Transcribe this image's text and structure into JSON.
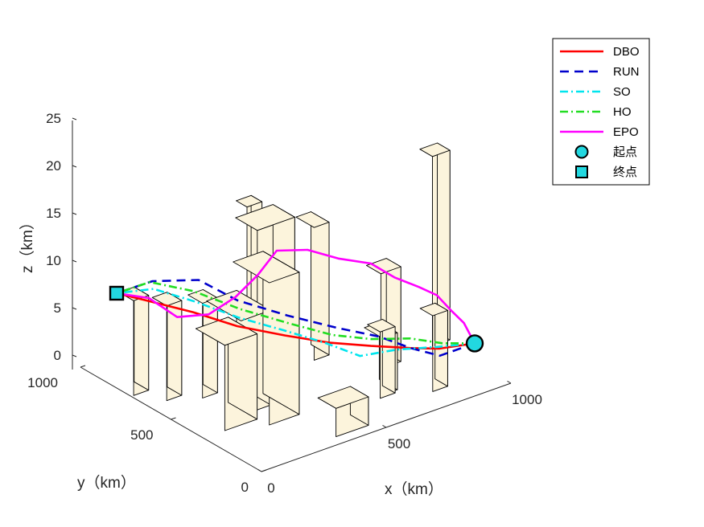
{
  "chart_data": {
    "type": "line",
    "view": "3d",
    "xlabel": "x（km）",
    "ylabel": "y（km）",
    "zlabel": "z（km）",
    "xlim": [
      0,
      1000
    ],
    "ylim": [
      0,
      1000
    ],
    "zlim": [
      0,
      25
    ],
    "xticks": [
      "0",
      "500",
      "1000"
    ],
    "yticks": [
      "0",
      "500",
      "1000"
    ],
    "zticks": [
      "0",
      "5",
      "10",
      "15",
      "20",
      "25"
    ],
    "grid": false,
    "legend_position": "top-right",
    "colors": {
      "DBO": "#ff0000",
      "RUN": "#0000cc",
      "SO": "#00e5ee",
      "HO": "#22dd22",
      "EPO": "#ff00ff",
      "marker_fill": "#22d8e0",
      "building_fill": "#fcf4dc",
      "building_edge": "#000000"
    },
    "start": {
      "name": "起点",
      "x": 1000,
      "y": 200,
      "z": 2
    },
    "end": {
      "name": "终点",
      "x": 0,
      "y": 800,
      "z": 10
    },
    "buildings": [
      {
        "x": 400,
        "y": 100,
        "w": 130,
        "d": 100,
        "h": 3
      },
      {
        "x": 150,
        "y": 400,
        "w": 130,
        "d": 160,
        "h": 9
      },
      {
        "x": 40,
        "y": 760,
        "w": 60,
        "d": 80,
        "h": 10
      },
      {
        "x": 100,
        "y": 660,
        "w": 60,
        "d": 80,
        "h": 10
      },
      {
        "x": 200,
        "y": 600,
        "w": 60,
        "d": 80,
        "h": 10
      },
      {
        "x": 250,
        "y": 470,
        "w": 120,
        "d": 190,
        "h": 10
      },
      {
        "x": 280,
        "y": 360,
        "w": 120,
        "d": 200,
        "h": 15
      },
      {
        "x": 640,
        "y": 220,
        "w": 60,
        "d": 70,
        "h": 7
      },
      {
        "x": 800,
        "y": 150,
        "w": 60,
        "d": 70,
        "h": 8
      },
      {
        "x": 660,
        "y": 250,
        "w": 60,
        "d": 100,
        "h": 6
      },
      {
        "x": 450,
        "y": 600,
        "w": 150,
        "d": 120,
        "h": 16
      },
      {
        "x": 480,
        "y": 730,
        "w": 60,
        "d": 60,
        "h": 16
      },
      {
        "x": 640,
        "y": 600,
        "w": 60,
        "d": 100,
        "h": 14
      },
      {
        "x": 780,
        "y": 400,
        "w": 80,
        "d": 80,
        "h": 10
      },
      {
        "x": 1000,
        "y": 420,
        "w": 70,
        "d": 70,
        "h": 20
      }
    ],
    "series": [
      {
        "name": "DBO",
        "style": "solid",
        "points": [
          [
            1000,
            200,
            2
          ],
          [
            870,
            215,
            2.5
          ],
          [
            780,
            250,
            3
          ],
          [
            650,
            290,
            4
          ],
          [
            520,
            340,
            5
          ],
          [
            400,
            420,
            6
          ],
          [
            280,
            520,
            7
          ],
          [
            170,
            610,
            8.5
          ],
          [
            60,
            730,
            9.5
          ],
          [
            0,
            800,
            10
          ]
        ]
      },
      {
        "name": "RUN",
        "style": "dashed",
        "points": [
          [
            1000,
            200,
            2
          ],
          [
            860,
            200,
            2
          ],
          [
            780,
            250,
            3
          ],
          [
            690,
            300,
            4.5
          ],
          [
            560,
            360,
            6
          ],
          [
            430,
            450,
            7.5
          ],
          [
            310,
            560,
            9
          ],
          [
            220,
            650,
            11
          ],
          [
            100,
            740,
            11
          ],
          [
            0,
            800,
            10
          ]
        ]
      },
      {
        "name": "SO",
        "style": "dashdot",
        "points": [
          [
            1000,
            200,
            2
          ],
          [
            870,
            230,
            2.5
          ],
          [
            740,
            270,
            3
          ],
          [
            620,
            310,
            3
          ],
          [
            530,
            370,
            4.5
          ],
          [
            420,
            450,
            6
          ],
          [
            300,
            540,
            7.5
          ],
          [
            200,
            640,
            9
          ],
          [
            90,
            720,
            10.5
          ],
          [
            0,
            800,
            10
          ]
        ]
      },
      {
        "name": "HO",
        "style": "dashdot",
        "points": [
          [
            1000,
            200,
            2
          ],
          [
            900,
            240,
            2.5
          ],
          [
            800,
            280,
            3.5
          ],
          [
            680,
            330,
            4
          ],
          [
            560,
            380,
            5
          ],
          [
            440,
            460,
            6.5
          ],
          [
            320,
            560,
            8
          ],
          [
            200,
            650,
            10
          ],
          [
            90,
            740,
            11
          ],
          [
            0,
            800,
            10
          ]
        ]
      },
      {
        "name": "EPO",
        "style": "solid",
        "points": [
          [
            1000,
            200,
            2
          ],
          [
            1000,
            260,
            3.5
          ],
          [
            980,
            300,
            4.5
          ],
          [
            950,
            340,
            6
          ],
          [
            900,
            370,
            7
          ],
          [
            840,
            420,
            8
          ],
          [
            780,
            470,
            9.5
          ],
          [
            700,
            540,
            10
          ],
          [
            620,
            600,
            11
          ],
          [
            540,
            660,
            11
          ],
          [
            450,
            640,
            9.5
          ],
          [
            360,
            640,
            8
          ],
          [
            260,
            650,
            7
          ],
          [
            170,
            700,
            7
          ],
          [
            100,
            760,
            9
          ],
          [
            0,
            800,
            10
          ]
        ]
      }
    ]
  }
}
